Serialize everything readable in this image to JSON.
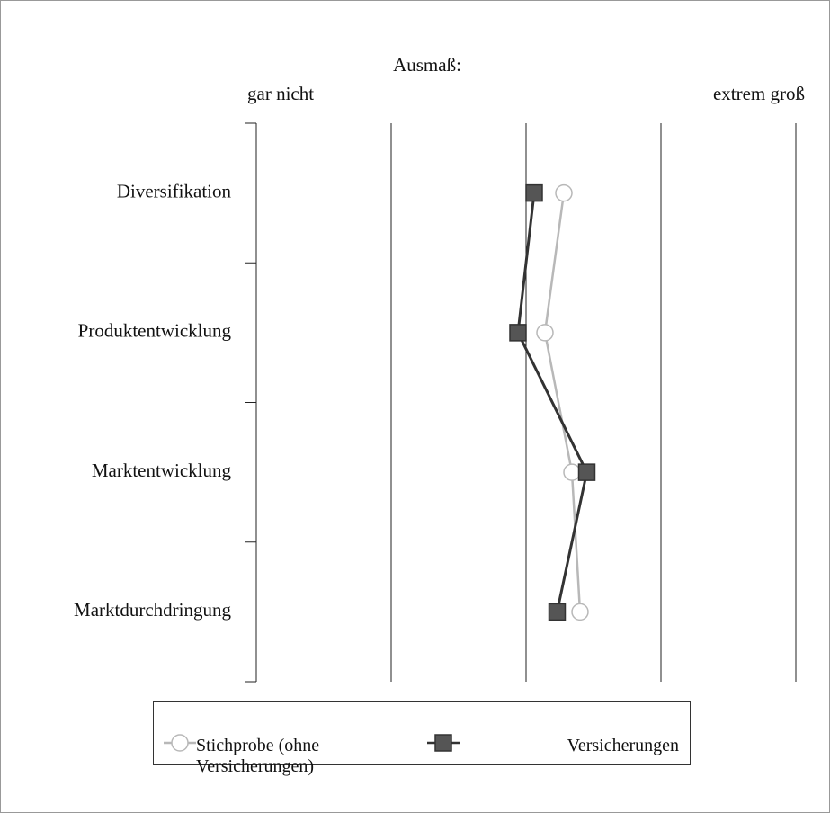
{
  "chart_data": {
    "type": "line",
    "x_label": "Ausmaß:",
    "x_end_labels": [
      "gar nicht",
      "extrem groß"
    ],
    "categories": [
      "Diversifikation",
      "Produktentwicklung",
      "Marktentwicklung",
      "Marktdurchdringung"
    ],
    "series": [
      {
        "name": "Stichprobe (ohne Versicherungen)",
        "color": "#b8b8b8",
        "marker": "circle",
        "values": [
          3.28,
          3.14,
          3.34,
          3.4
        ]
      },
      {
        "name": "Versicherungen",
        "color": "#333333",
        "marker": "square",
        "values": [
          3.06,
          2.94,
          3.45,
          3.23
        ]
      }
    ],
    "xlim": [
      1,
      5
    ],
    "xticks": [
      1,
      2,
      3,
      4,
      5
    ],
    "grid": true,
    "legend": "bottom"
  }
}
